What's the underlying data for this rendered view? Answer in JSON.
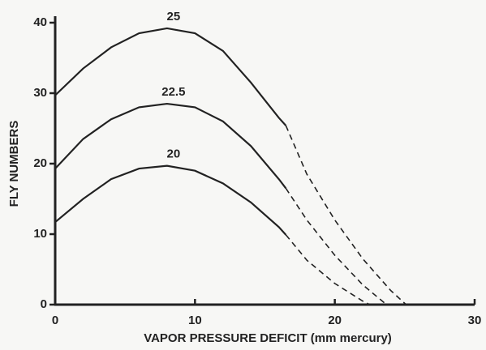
{
  "chart_data": {
    "type": "line",
    "xlabel": "VAPOR PRESSURE DEFICIT (mm mercury)",
    "ylabel": "FLY NUMBERS",
    "xlim": [
      0,
      30
    ],
    "xticks": [
      0,
      10,
      20,
      30
    ],
    "ylim": [
      0,
      40
    ],
    "yticks": [
      0,
      10,
      20,
      30,
      40
    ],
    "series": [
      {
        "name": "25",
        "color": "#222222",
        "x": [
          0,
          2,
          4,
          6,
          8,
          10,
          12,
          14,
          16,
          16.5
        ],
        "values": [
          29.7,
          33.5,
          36.5,
          38.5,
          39.2,
          38.5,
          36,
          31.5,
          26.5,
          25.4
        ],
        "extrapolated": {
          "x": [
            16.5,
            18,
            20,
            22,
            24,
            25.1
          ],
          "values": [
            25.4,
            18.5,
            12,
            6.5,
            2,
            0
          ]
        }
      },
      {
        "name": "22.5",
        "color": "#222222",
        "x": [
          0,
          2,
          4,
          6,
          8,
          10,
          12,
          14,
          16,
          16.5
        ],
        "values": [
          19.3,
          23.5,
          26.3,
          28,
          28.5,
          28,
          26,
          22.5,
          17.8,
          16.5
        ],
        "extrapolated": {
          "x": [
            16.5,
            18,
            20,
            22,
            23.7
          ],
          "values": [
            16.5,
            12,
            7,
            2.8,
            0
          ]
        }
      },
      {
        "name": "20",
        "color": "#222222",
        "x": [
          0,
          2,
          4,
          6,
          8,
          10,
          12,
          14,
          16,
          16.5
        ],
        "values": [
          11.7,
          15,
          17.8,
          19.3,
          19.7,
          19,
          17.2,
          14.5,
          11,
          9.9
        ],
        "extrapolated": {
          "x": [
            16.5,
            18,
            20,
            22,
            22.5
          ],
          "values": [
            9.9,
            6.3,
            3,
            0.5,
            0
          ]
        }
      }
    ]
  }
}
